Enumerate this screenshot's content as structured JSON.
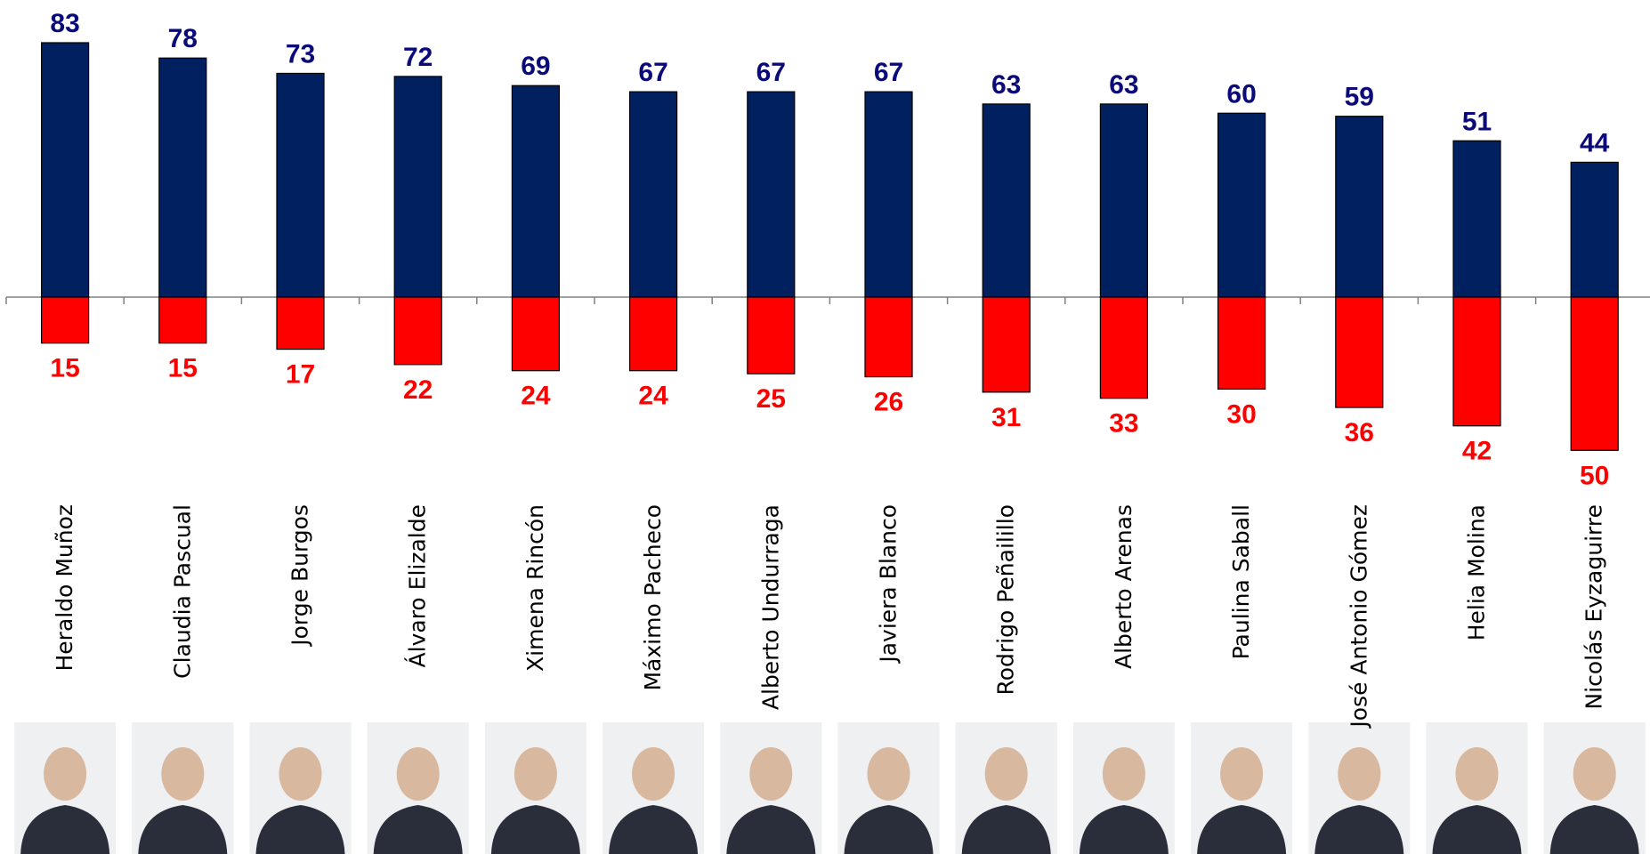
{
  "chart_data": {
    "type": "diverging-bar",
    "categories": [
      "Heraldo Muñoz",
      "Claudia Pascual",
      "Jorge Burgos",
      "Álvaro Elizalde",
      "Ximena Rincón",
      "Máximo Pacheco",
      "Alberto Undurraga",
      "Javiera Blanco",
      "Rodrigo Peñailillo",
      "Alberto Arenas",
      "Paulina Saball",
      "José Antonio Gómez",
      "Helia Molina",
      "Nicolás Eyzaguirre"
    ],
    "series": [
      {
        "color": "#002060",
        "label_color": "#0a0a7a",
        "direction": "up",
        "values": [
          83,
          78,
          73,
          72,
          69,
          67,
          67,
          67,
          63,
          63,
          60,
          59,
          51,
          44
        ]
      },
      {
        "color": "#ff0000",
        "label_color": "#ff0000",
        "direction": "down",
        "values": [
          15,
          15,
          17,
          22,
          24,
          24,
          25,
          26,
          31,
          33,
          30,
          36,
          42,
          50
        ]
      }
    ]
  }
}
